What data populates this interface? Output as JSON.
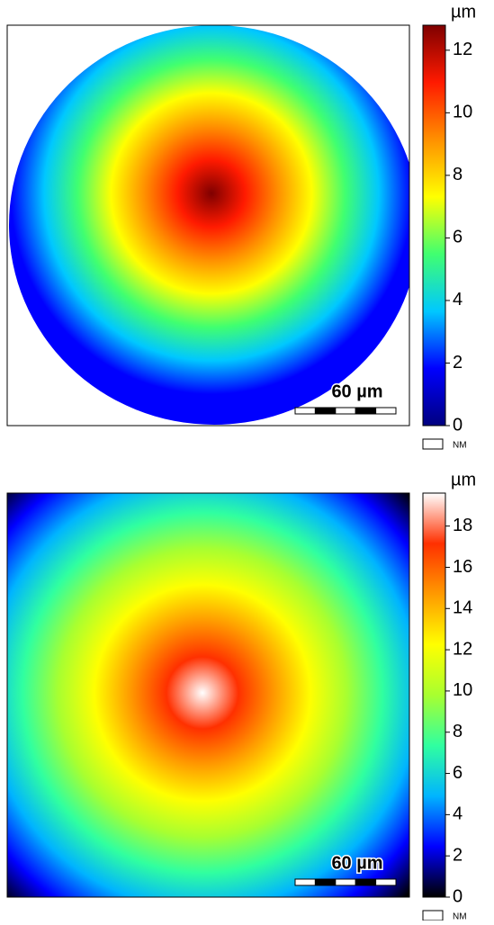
{
  "chart_data": [
    {
      "type": "heatmap",
      "unit": "µm",
      "clim": [
        0,
        12.8
      ],
      "cticks": [
        0,
        2,
        4,
        6,
        8,
        10,
        12
      ],
      "colormap": [
        "#00007f",
        "#0000ff",
        "#00c8ff",
        "#40ff70",
        "#ffff00",
        "#ff9000",
        "#ff1a00",
        "#7f0000"
      ],
      "scale_bar": "60 µm",
      "missing_label": "NM"
    },
    {
      "type": "heatmap",
      "unit": "µm",
      "clim": [
        0,
        19.6
      ],
      "cticks": [
        0,
        2,
        4,
        6,
        8,
        10,
        12,
        14,
        16,
        18
      ],
      "colormap": [
        "#000000",
        "#0000ff",
        "#00b4ff",
        "#30ffa0",
        "#a8ff30",
        "#ffff00",
        "#ff9a00",
        "#ff3000",
        "#ffffff"
      ],
      "scale_bar": "60 µm",
      "missing_label": "NM"
    }
  ]
}
